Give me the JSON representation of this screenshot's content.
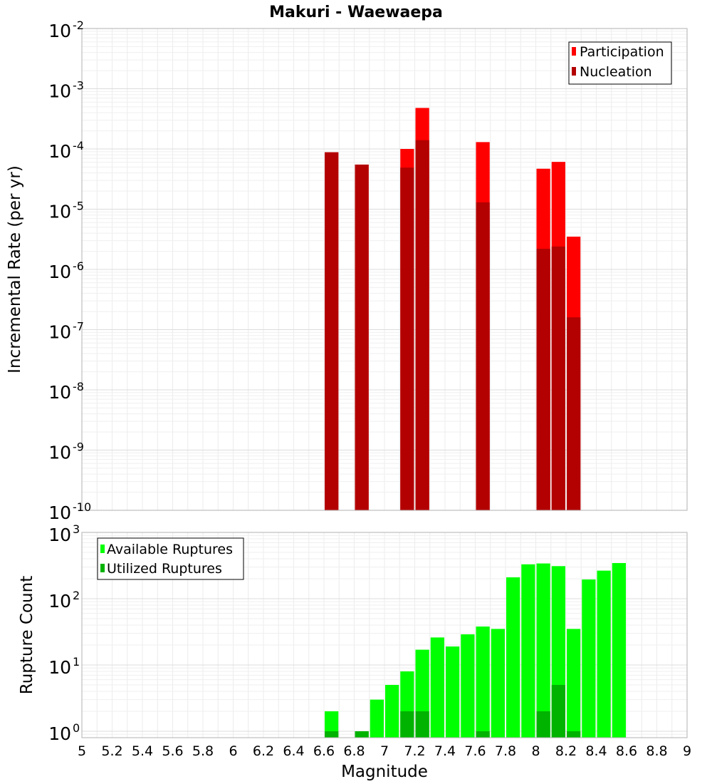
{
  "chart_data": [
    {
      "type": "bar",
      "title": "Makuri - Waewaepa",
      "xlabel": "",
      "ylabel": "Incremental Rate (per yr)",
      "xlim": [
        5,
        9
      ],
      "ylim": [
        1e-10,
        0.01
      ],
      "yscale": "log",
      "y_tick_exponents": [
        "-2",
        "-3",
        "-4",
        "-5",
        "-6",
        "-7",
        "-8",
        "-9",
        "-10"
      ],
      "bar_width": 0.1,
      "grid": true,
      "legend": "top-right",
      "series": [
        {
          "name": "Participation",
          "color": "#ff0000",
          "x": [
            6.65,
            6.85,
            7.15,
            7.25,
            7.65,
            8.05,
            8.15,
            8.25
          ],
          "values": [
            8.8e-05,
            5.5e-05,
            0.0001,
            0.00048,
            0.00013,
            4.7e-05,
            6.1e-05,
            3.5e-06
          ]
        },
        {
          "name": "Nucleation",
          "color": "#b30000",
          "x": [
            6.65,
            6.85,
            7.15,
            7.25,
            7.65,
            8.05,
            8.15,
            8.25
          ],
          "values": [
            8.8e-05,
            5.5e-05,
            4.9e-05,
            0.00014,
            1.3e-05,
            2.2e-06,
            2.4e-06,
            1.6e-07
          ]
        }
      ]
    },
    {
      "type": "bar",
      "title": "",
      "xlabel": "Magnitude",
      "ylabel": "Rupture Count",
      "xlim": [
        5,
        9
      ],
      "ylim": [
        0.8,
        1000
      ],
      "yscale": "log",
      "x_ticks": [
        "5",
        "5.2",
        "5.4",
        "5.6",
        "5.8",
        "6",
        "6.2",
        "6.4",
        "6.6",
        "6.8",
        "7",
        "7.2",
        "7.4",
        "7.6",
        "7.8",
        "8",
        "8.2",
        "8.4",
        "8.6",
        "8.8",
        "9"
      ],
      "y_tick_exponents": [
        "3",
        "2",
        "1",
        "0"
      ],
      "bar_width": 0.1,
      "grid": true,
      "legend": "top-left",
      "series": [
        {
          "name": "Available Ruptures",
          "color": "#00ff00",
          "x": [
            6.65,
            6.85,
            6.95,
            7.05,
            7.15,
            7.25,
            7.35,
            7.45,
            7.55,
            7.65,
            7.75,
            7.85,
            7.95,
            8.05,
            8.15,
            8.25,
            8.35,
            8.45,
            8.55
          ],
          "values": [
            2,
            1,
            3,
            5,
            8,
            17,
            26,
            19,
            29,
            38,
            35,
            210,
            330,
            340,
            310,
            35,
            195,
            265,
            345
          ]
        },
        {
          "name": "Utilized Ruptures",
          "color": "#00b300",
          "x": [
            6.65,
            6.85,
            7.15,
            7.25,
            7.65,
            8.05,
            8.15,
            8.25
          ],
          "values": [
            1,
            1,
            2,
            2,
            1,
            2,
            5,
            1
          ]
        }
      ]
    }
  ]
}
